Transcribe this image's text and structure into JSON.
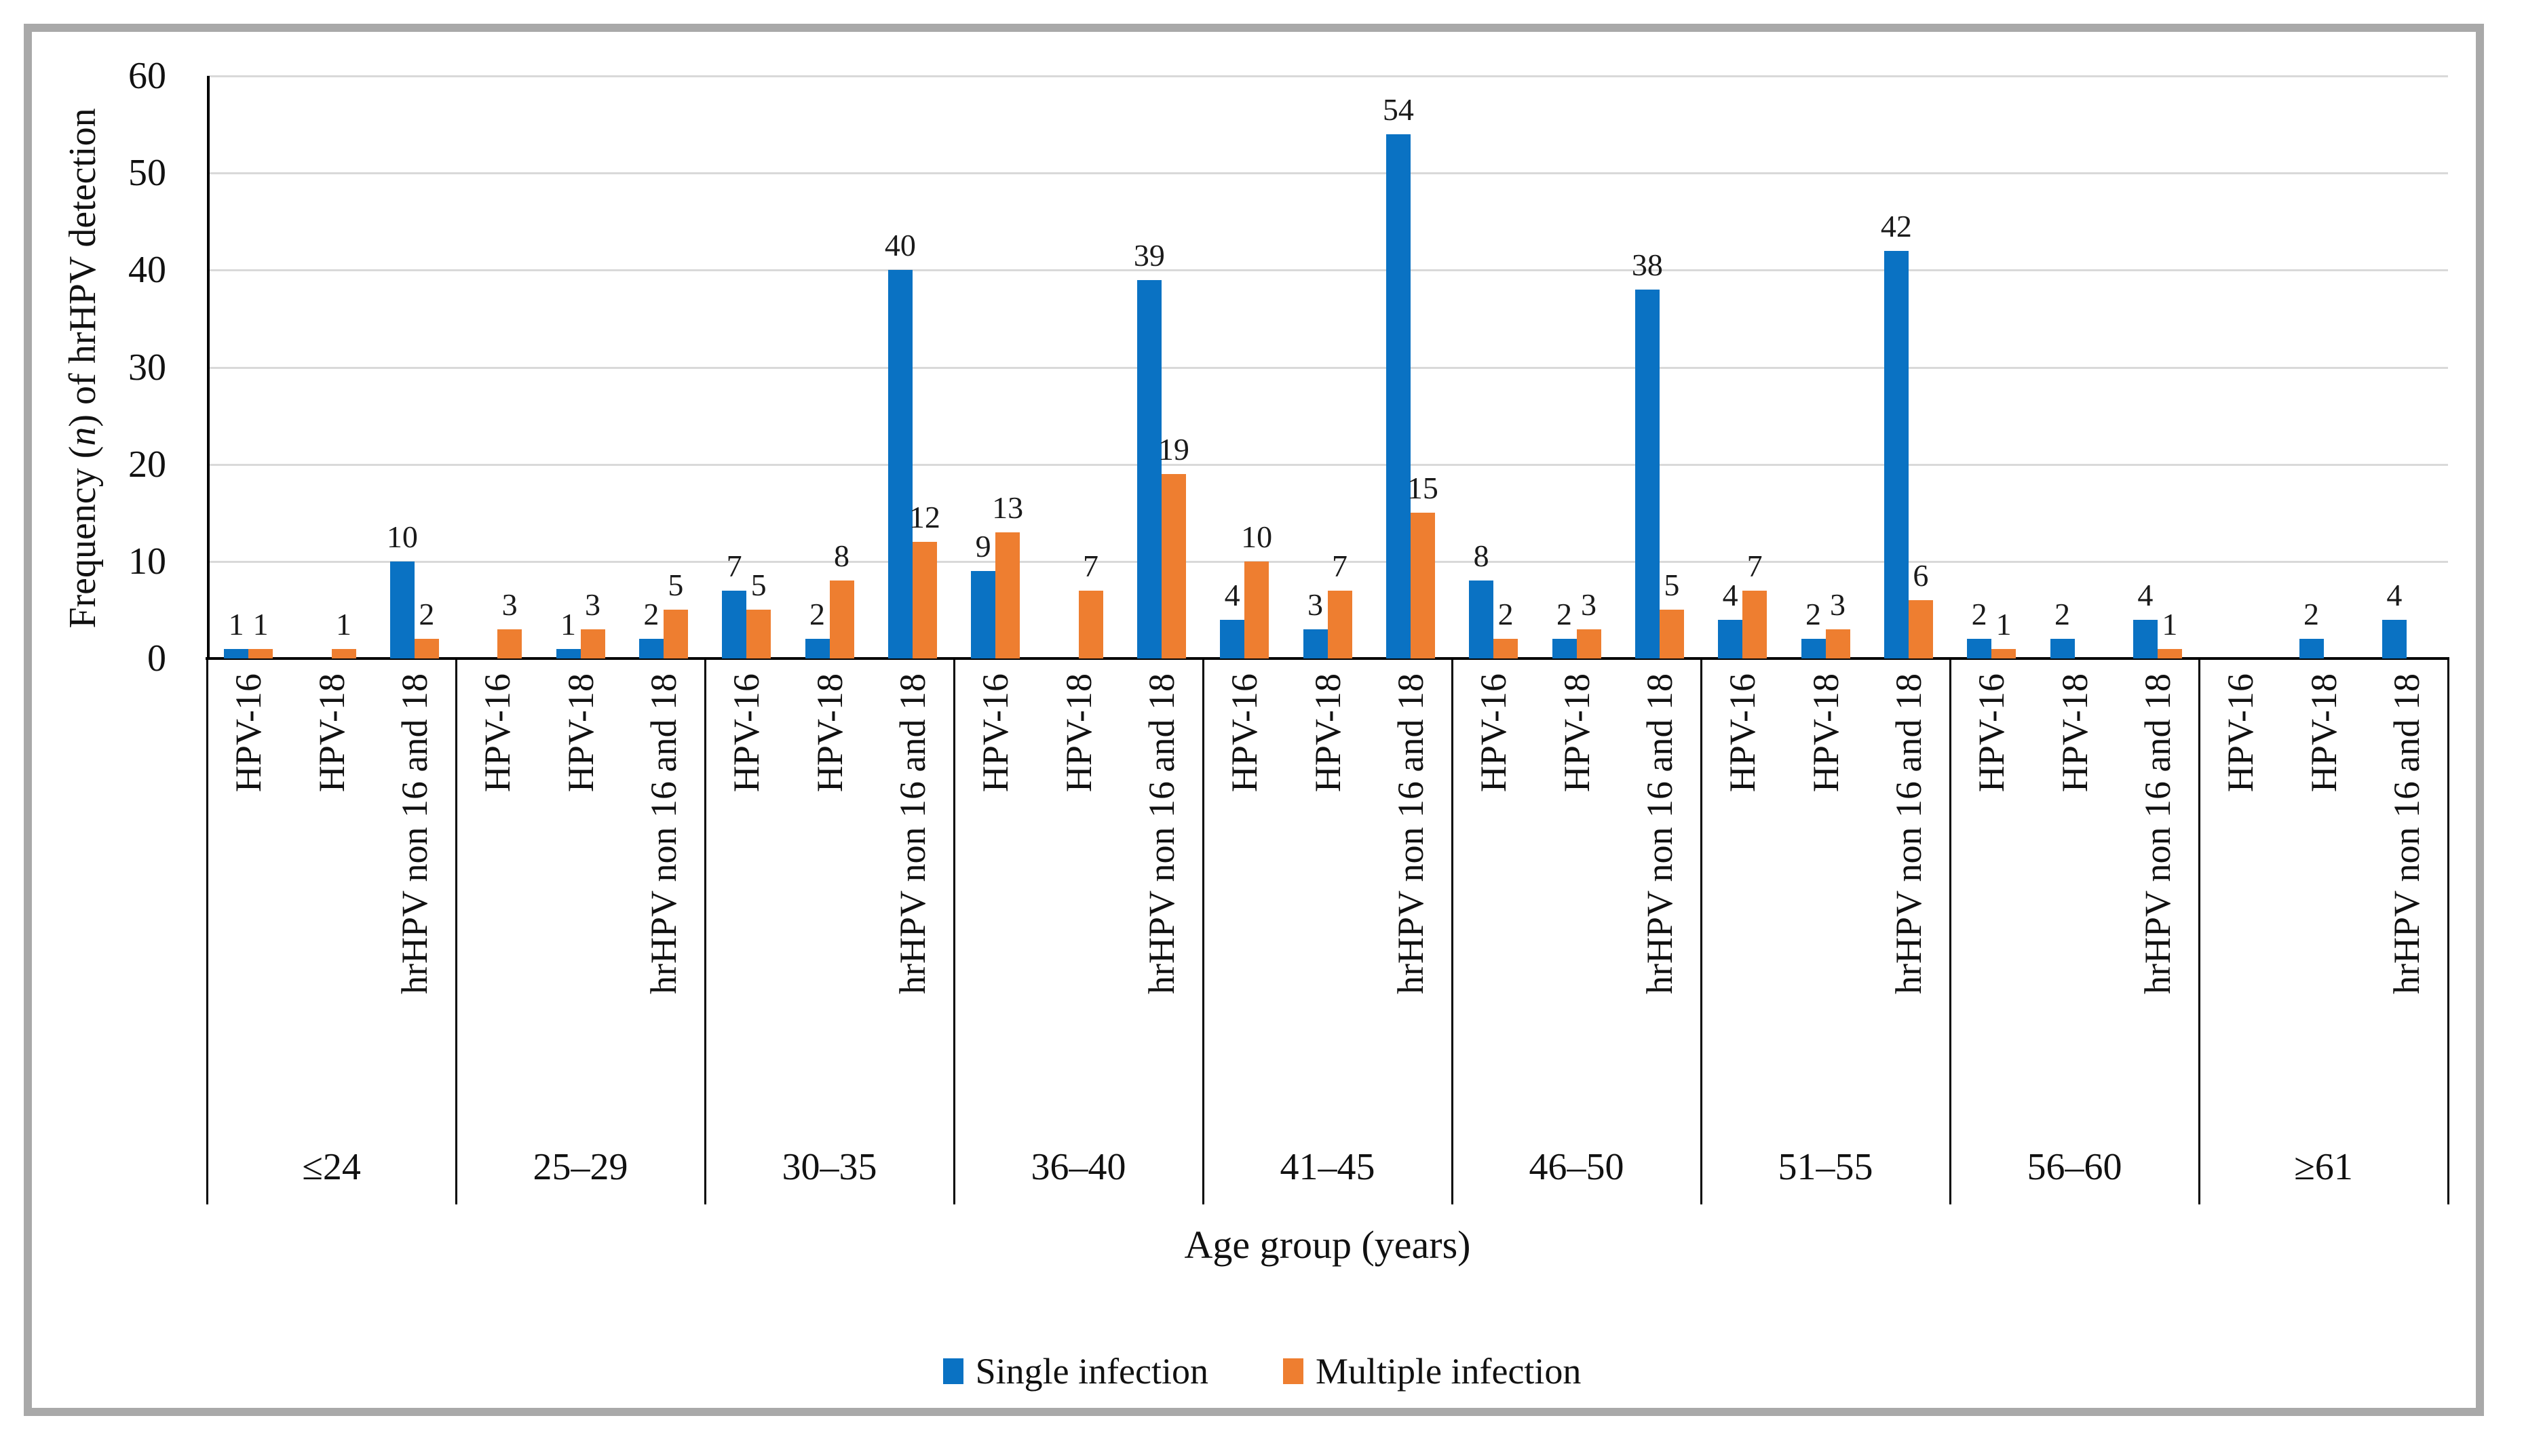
{
  "chart_data": {
    "type": "bar",
    "title": "",
    "xlabel": "Age group (years)",
    "ylabel": "Frequency (n) of hrHPV detection",
    "ylabel_parts": {
      "prefix": "Frequency (",
      "italic_symbol": "n",
      "suffix": ") of hrHPV detection"
    },
    "ylim": [
      0,
      60
    ],
    "yticks": [
      0,
      10,
      20,
      30,
      40,
      50,
      60
    ],
    "grid": "horizontal-light-gray",
    "legend_position": "bottom-center",
    "age_groups": [
      "≤24",
      "25–29",
      "30–35",
      "36–40",
      "41–45",
      "46–50",
      "51–55",
      "56–60",
      "≥61"
    ],
    "categories_per_group": [
      "HPV-16",
      "HPV-18",
      "hrHPV non 16 and 18"
    ],
    "series": [
      {
        "name": "Single infection",
        "color": "#0a72c3"
      },
      {
        "name": "Multiple infection",
        "color": "#ee7e30"
      }
    ],
    "values": {
      "single": [
        [
          1,
          null,
          10
        ],
        [
          null,
          1,
          2
        ],
        [
          7,
          2,
          40
        ],
        [
          9,
          null,
          39
        ],
        [
          4,
          3,
          54
        ],
        [
          8,
          2,
          38
        ],
        [
          4,
          2,
          42
        ],
        [
          2,
          2,
          4
        ],
        [
          null,
          2,
          4
        ]
      ],
      "multiple": [
        [
          1,
          1,
          2
        ],
        [
          3,
          3,
          5
        ],
        [
          5,
          8,
          12
        ],
        [
          13,
          7,
          19
        ],
        [
          10,
          7,
          15
        ],
        [
          2,
          3,
          5
        ],
        [
          7,
          3,
          6
        ],
        [
          1,
          null,
          1
        ],
        [
          null,
          null,
          null
        ]
      ]
    }
  },
  "style_colors": {
    "gridline": "#d9d9d9",
    "axis": "#000000",
    "frame": "#a9a9a9",
    "label_text": "#1a1a1a"
  }
}
